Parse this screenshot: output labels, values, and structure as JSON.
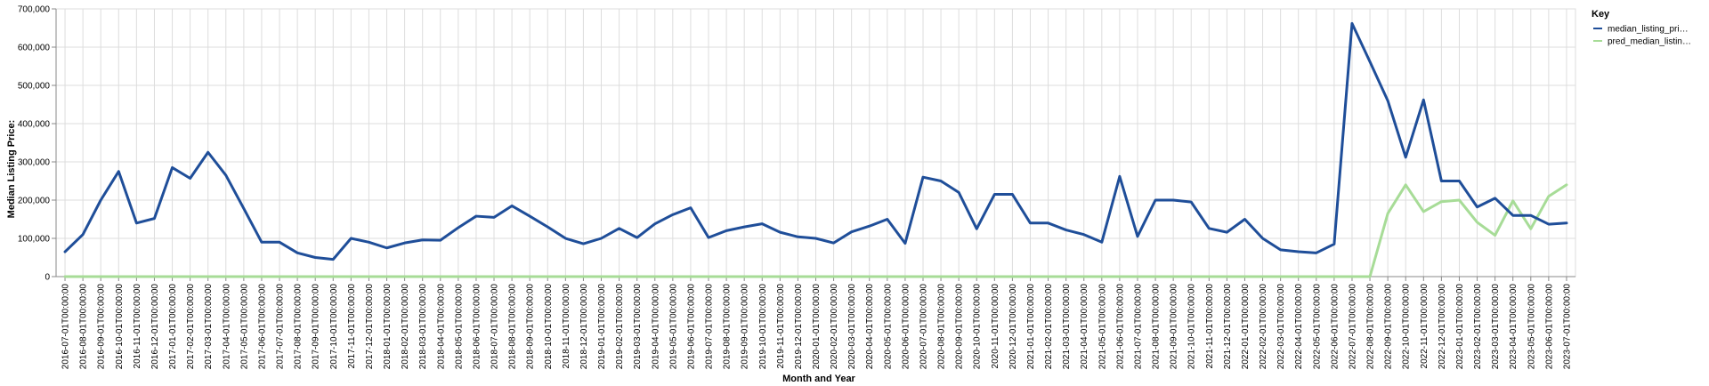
{
  "chart_data": {
    "type": "line",
    "xlabel": "Month and Year",
    "ylabel": "Median Listing Price:",
    "ylim": [
      0,
      700000
    ],
    "yticks": [
      "0",
      "100,000",
      "200,000",
      "300,000",
      "400,000",
      "500,000",
      "600,000",
      "700,000"
    ],
    "grid": true,
    "legend": {
      "title": "Key",
      "position": "top-right",
      "entries": [
        "median_listing_pri…",
        "pred_median_listin…"
      ]
    },
    "x": [
      "2016-07-01T00:00:00",
      "2016-08-01T00:00:00",
      "2016-09-01T00:00:00",
      "2016-10-01T00:00:00",
      "2016-11-01T00:00:00",
      "2016-12-01T00:00:00",
      "2017-01-01T00:00:00",
      "2017-02-01T00:00:00",
      "2017-03-01T00:00:00",
      "2017-04-01T00:00:00",
      "2017-05-01T00:00:00",
      "2017-06-01T00:00:00",
      "2017-07-01T00:00:00",
      "2017-08-01T00:00:00",
      "2017-09-01T00:00:00",
      "2017-10-01T00:00:00",
      "2017-11-01T00:00:00",
      "2017-12-01T00:00:00",
      "2018-01-01T00:00:00",
      "2018-02-01T00:00:00",
      "2018-03-01T00:00:00",
      "2018-04-01T00:00:00",
      "2018-05-01T00:00:00",
      "2018-06-01T00:00:00",
      "2018-07-01T00:00:00",
      "2018-08-01T00:00:00",
      "2018-09-01T00:00:00",
      "2018-10-01T00:00:00",
      "2018-11-01T00:00:00",
      "2018-12-01T00:00:00",
      "2019-01-01T00:00:00",
      "2019-02-01T00:00:00",
      "2019-03-01T00:00:00",
      "2019-04-01T00:00:00",
      "2019-05-01T00:00:00",
      "2019-06-01T00:00:00",
      "2019-07-01T00:00:00",
      "2019-08-01T00:00:00",
      "2019-09-01T00:00:00",
      "2019-10-01T00:00:00",
      "2019-11-01T00:00:00",
      "2019-12-01T00:00:00",
      "2020-01-01T00:00:00",
      "2020-02-01T00:00:00",
      "2020-03-01T00:00:00",
      "2020-04-01T00:00:00",
      "2020-05-01T00:00:00",
      "2020-06-01T00:00:00",
      "2020-07-01T00:00:00",
      "2020-08-01T00:00:00",
      "2020-09-01T00:00:00",
      "2020-10-01T00:00:00",
      "2020-11-01T00:00:00",
      "2020-12-01T00:00:00",
      "2021-01-01T00:00:00",
      "2021-02-01T00:00:00",
      "2021-03-01T00:00:00",
      "2021-04-01T00:00:00",
      "2021-05-01T00:00:00",
      "2021-06-01T00:00:00",
      "2021-07-01T00:00:00",
      "2021-08-01T00:00:00",
      "2021-09-01T00:00:00",
      "2021-10-01T00:00:00",
      "2021-11-01T00:00:00",
      "2021-12-01T00:00:00",
      "2022-01-01T00:00:00",
      "2022-02-01T00:00:00",
      "2022-03-01T00:00:00",
      "2022-04-01T00:00:00",
      "2022-05-01T00:00:00",
      "2022-06-01T00:00:00",
      "2022-07-01T00:00:00",
      "2022-08-01T00:00:00",
      "2022-09-01T00:00:00",
      "2022-10-01T00:00:00",
      "2022-11-01T00:00:00",
      "2022-12-01T00:00:00",
      "2023-01-01T00:00:00",
      "2023-02-01T00:00:00",
      "2023-03-01T00:00:00",
      "2023-04-01T00:00:00",
      "2023-05-01T00:00:00",
      "2023-06-01T00:00:00",
      "2023-07-01T00:00:00"
    ],
    "series": [
      {
        "name": "median_listing_pri…",
        "color": "#1f4e99",
        "values": [
          65000,
          110000,
          200000,
          275000,
          140000,
          152000,
          285000,
          257000,
          325000,
          265000,
          178000,
          90000,
          90000,
          62000,
          50000,
          45000,
          100000,
          90000,
          75000,
          88000,
          96000,
          95000,
          128000,
          158000,
          155000,
          185000,
          158000,
          130000,
          100000,
          86000,
          100000,
          126000,
          102000,
          138000,
          162000,
          180000,
          102000,
          120000,
          130000,
          138000,
          116000,
          104000,
          100000,
          88000,
          117000,
          132000,
          150000,
          87000,
          260000,
          250000,
          220000,
          125000,
          215000,
          215000,
          140000,
          140000,
          122000,
          110000,
          90000,
          262000,
          105000,
          200000,
          200000,
          195000,
          126000,
          116000,
          150000,
          100000,
          70000,
          65000,
          62000,
          85000,
          662000,
          562000,
          460000,
          312000,
          462000,
          250000,
          250000,
          182000,
          205000,
          160000,
          160000,
          137000,
          140000
        ]
      },
      {
        "name": "pred_median_listin…",
        "color": "#a7dc97",
        "values": [
          0,
          0,
          0,
          0,
          0,
          0,
          0,
          0,
          0,
          0,
          0,
          0,
          0,
          0,
          0,
          0,
          0,
          0,
          0,
          0,
          0,
          0,
          0,
          0,
          0,
          0,
          0,
          0,
          0,
          0,
          0,
          0,
          0,
          0,
          0,
          0,
          0,
          0,
          0,
          0,
          0,
          0,
          0,
          0,
          0,
          0,
          0,
          0,
          0,
          0,
          0,
          0,
          0,
          0,
          0,
          0,
          0,
          0,
          0,
          0,
          0,
          0,
          0,
          0,
          0,
          0,
          0,
          0,
          0,
          0,
          0,
          0,
          0,
          0,
          165000,
          240000,
          170000,
          196000,
          200000,
          142000,
          108000,
          198000,
          125000,
          210000,
          240000
        ]
      }
    ]
  }
}
